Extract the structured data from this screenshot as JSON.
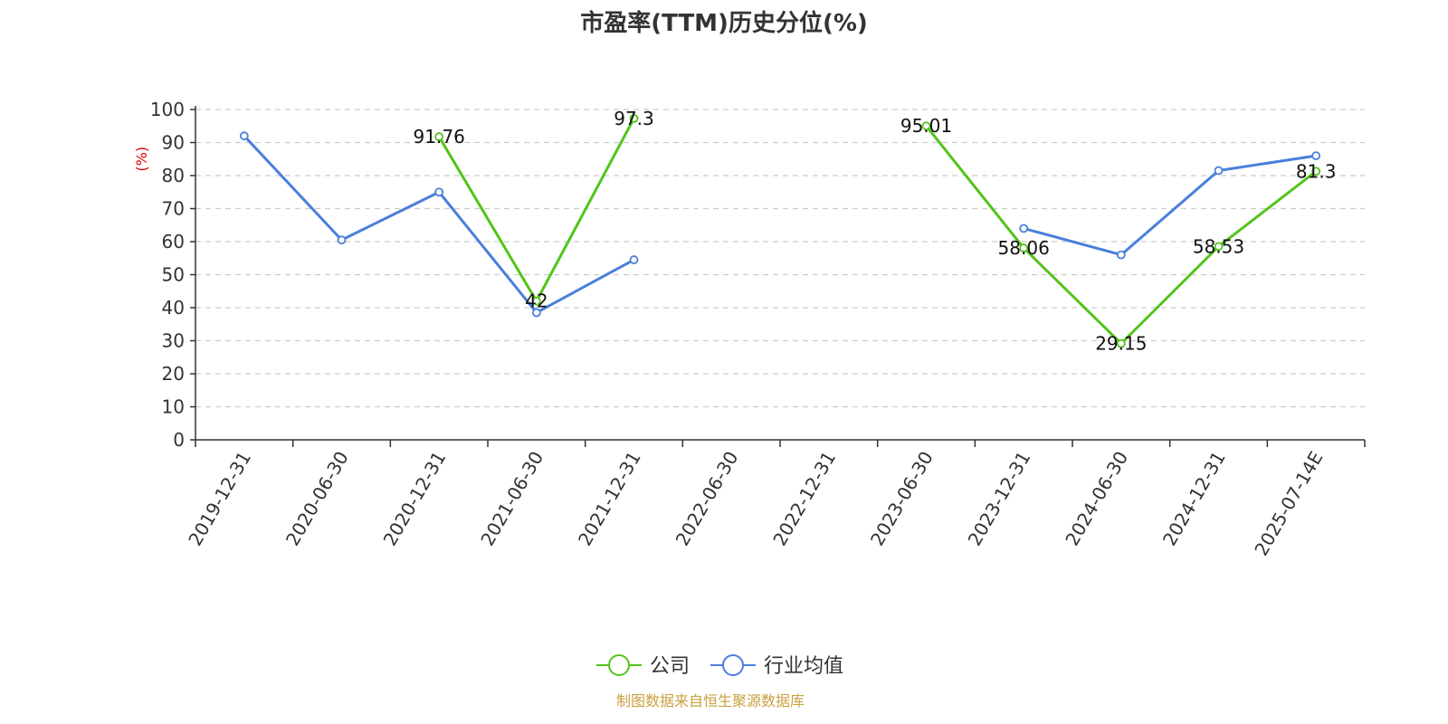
{
  "chart_data": {
    "type": "line",
    "title": "市盈率(TTM)历史分位(%)",
    "ylabel": "(%)",
    "ylim": [
      0,
      100
    ],
    "yticks": [
      0,
      10,
      20,
      30,
      40,
      50,
      60,
      70,
      80,
      90,
      100
    ],
    "grid": true,
    "legend_position": "bottom-center",
    "categories": [
      "2019-12-31",
      "2020-06-30",
      "2020-12-31",
      "2021-06-30",
      "2021-12-31",
      "2022-06-30",
      "2022-12-31",
      "2023-06-30",
      "2023-12-31",
      "2024-06-30",
      "2024-12-31",
      "2025-07-14E"
    ],
    "series": [
      {
        "name": "公司",
        "color": "#52c41a",
        "values": [
          null,
          null,
          91.76,
          42,
          97.3,
          null,
          null,
          95.01,
          58.06,
          29.15,
          58.53,
          81.3
        ],
        "labels": [
          null,
          null,
          "91.76",
          "42",
          "97.3",
          null,
          null,
          "95.01",
          "58.06",
          "29.15",
          "58.53",
          "81.3"
        ]
      },
      {
        "name": "行业均值",
        "color": "#4a7fdc",
        "values": [
          92,
          60.5,
          75,
          38.5,
          54.5,
          null,
          null,
          null,
          64,
          56,
          81.5,
          86
        ]
      }
    ],
    "source": "制图数据来自恒生聚源数据库",
    "source_color": "#c8a040",
    "ylabel_color": "#e00000"
  }
}
